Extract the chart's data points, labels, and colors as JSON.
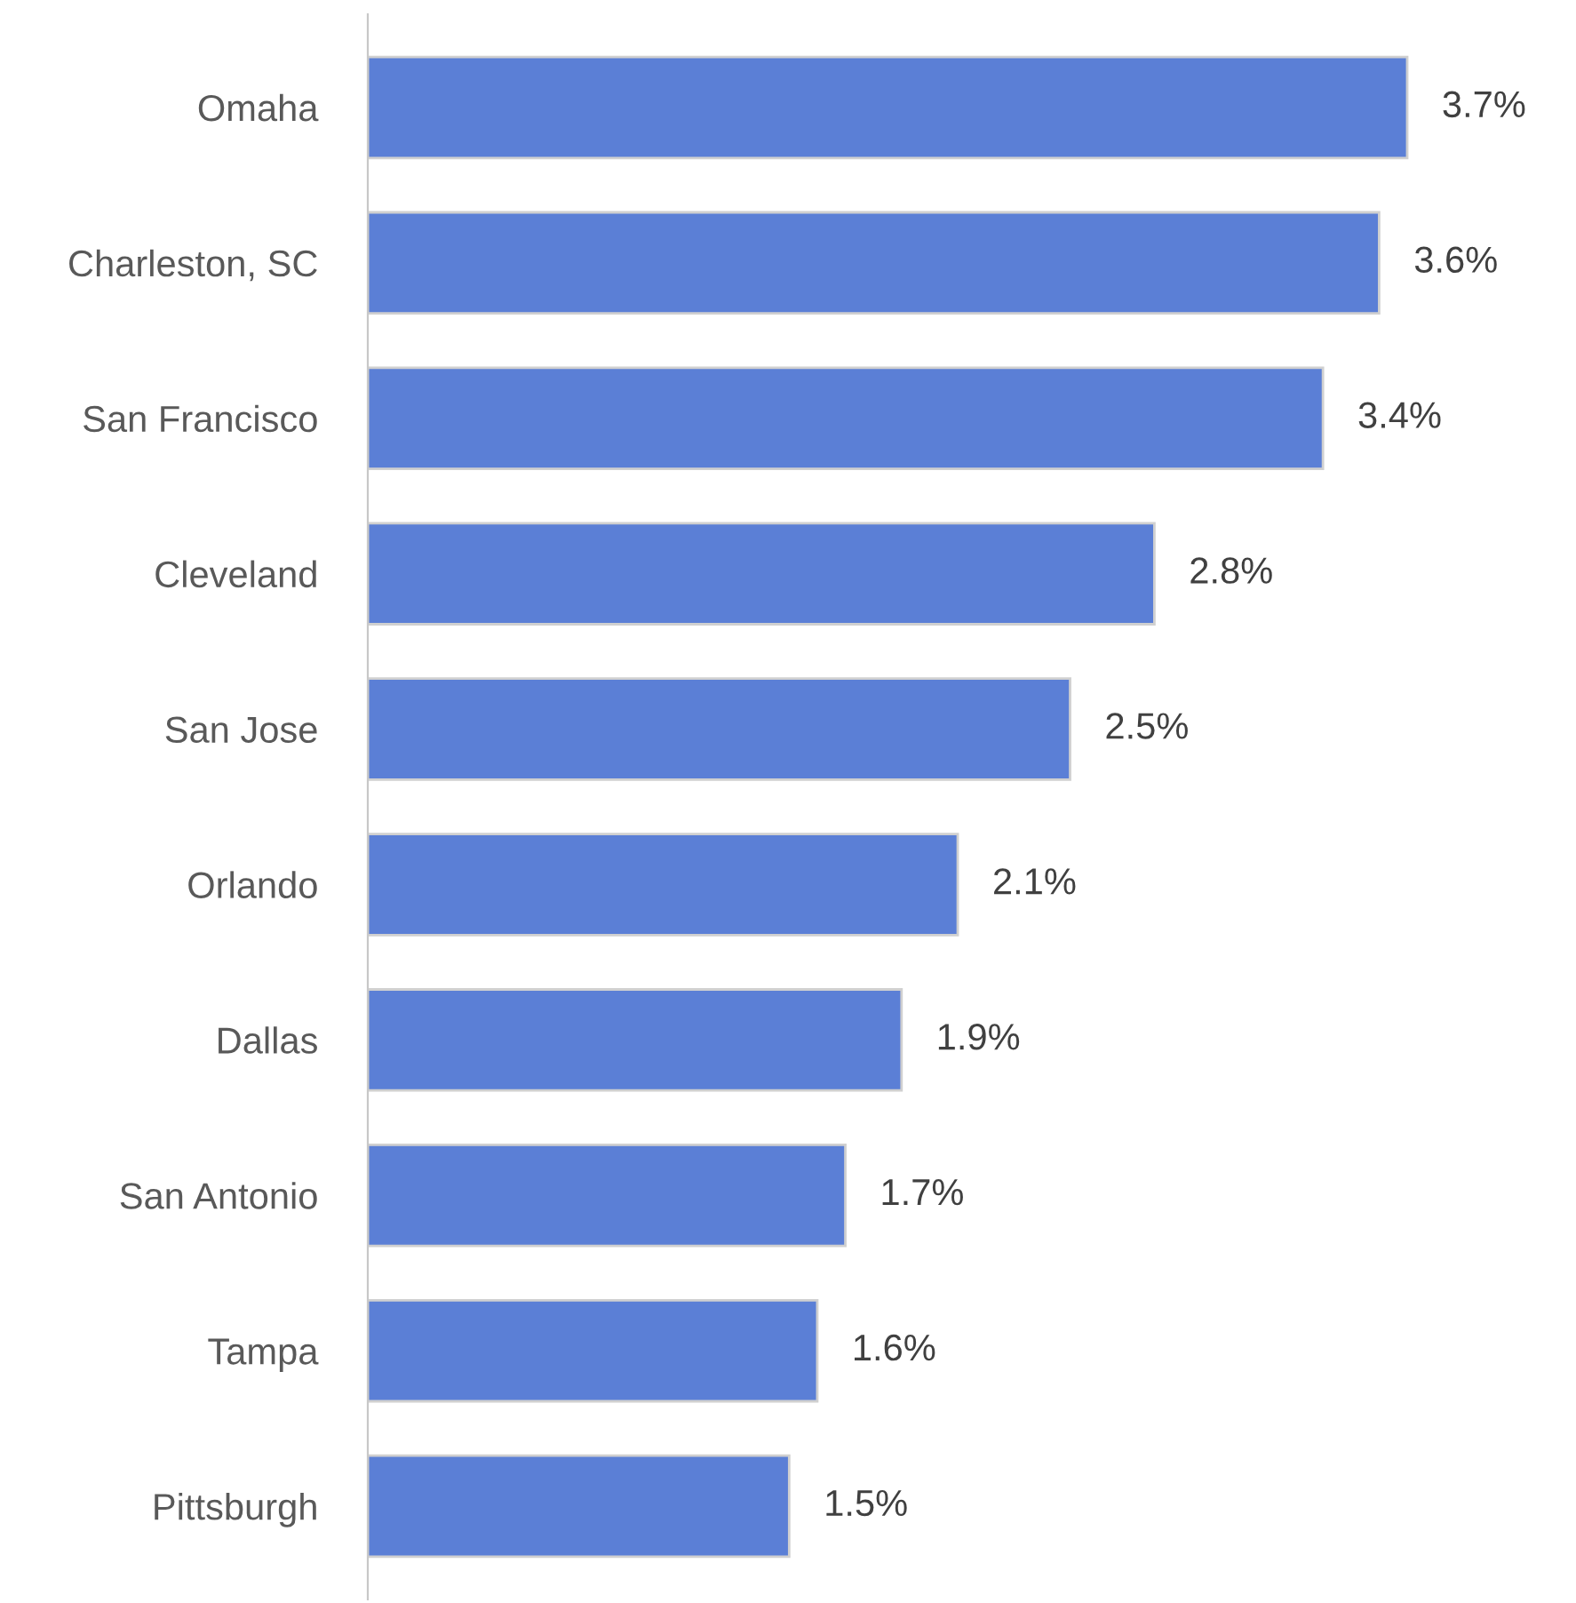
{
  "chart_data": {
    "type": "bar",
    "orientation": "horizontal",
    "categories": [
      "Omaha",
      "Charleston, SC",
      "San Francisco",
      "Cleveland",
      "San Jose",
      "Orlando",
      "Dallas",
      "San Antonio",
      "Tampa",
      "Pittsburgh"
    ],
    "values": [
      3.7,
      3.6,
      3.4,
      2.8,
      2.5,
      2.1,
      1.9,
      1.7,
      1.6,
      1.5
    ],
    "value_labels": [
      "3.7%",
      "3.6%",
      "3.4%",
      "2.8%",
      "2.5%",
      "2.1%",
      "1.9%",
      "1.7%",
      "1.6%",
      "1.5%"
    ],
    "color": "#5b7fd6",
    "grid": false,
    "legend": false
  }
}
